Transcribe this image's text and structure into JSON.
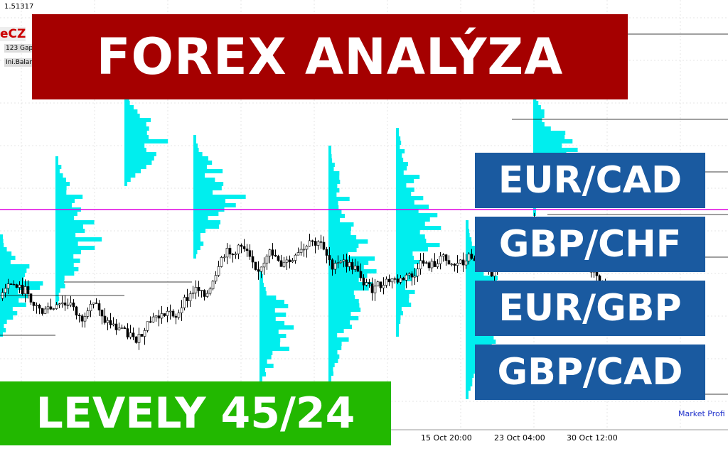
{
  "header": {
    "title": "FOREX ANALÝZA"
  },
  "badge": "LEVELY 45/24",
  "pairs": [
    "EUR/CAD",
    "GBP/CHF",
    "EUR/GBP",
    "GBP/CAD"
  ],
  "chart": {
    "price_label": "1.51317",
    "logo": "eCZ",
    "panel_labels": [
      "123 Gap",
      "Ini.Balan"
    ],
    "x_labels": [
      "15 Oct 20:00",
      "23 Oct 04:00",
      "30 Oct 12:00"
    ],
    "indicator": "Market Profi"
  }
}
